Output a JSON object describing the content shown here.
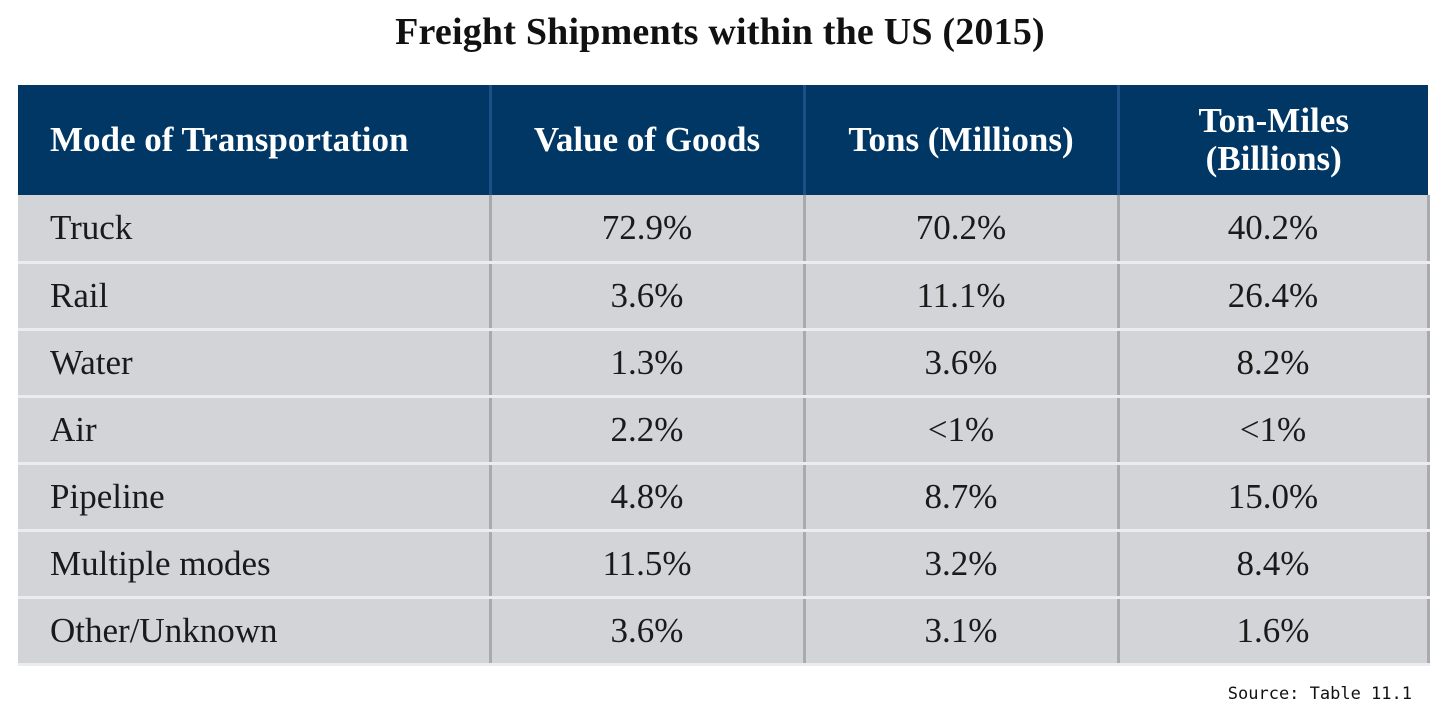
{
  "title": "Freight Shipments within the US (2015)",
  "source": "Source: Table 11.1",
  "colors": {
    "header_bg": "#003764",
    "header_text": "#ffffff",
    "row_bg": "#d3d4d8",
    "row_divider": "#ececee"
  },
  "chart_data": {
    "type": "table",
    "title": "Freight Shipments within the US (2015)",
    "columns": [
      "Mode of Transportation",
      "Value of Goods",
      "Tons (Millions)",
      "Ton-Miles (Billions)"
    ],
    "column_lines": [
      [
        "Mode of Transportation"
      ],
      [
        "Value of Goods"
      ],
      [
        "Tons (Millions)"
      ],
      [
        "Ton-Miles",
        "(Billions)"
      ]
    ],
    "rows": [
      {
        "mode": "Truck",
        "value": "72.9%",
        "tons": "70.2%",
        "ton_miles": "40.2%"
      },
      {
        "mode": "Rail",
        "value": "3.6%",
        "tons": "11.1%",
        "ton_miles": "26.4%"
      },
      {
        "mode": "Water",
        "value": "1.3%",
        "tons": "3.6%",
        "ton_miles": "8.2%"
      },
      {
        "mode": "Air",
        "value": "2.2%",
        "tons": "<1%",
        "ton_miles": "<1%"
      },
      {
        "mode": "Pipeline",
        "value": "4.8%",
        "tons": "8.7%",
        "ton_miles": "15.0%"
      },
      {
        "mode": "Multiple modes",
        "value": "11.5%",
        "tons": "3.2%",
        "ton_miles": "8.4%"
      },
      {
        "mode": "Other/Unknown",
        "value": "3.6%",
        "tons": "3.1%",
        "ton_miles": "1.6%"
      }
    ],
    "source": "Source: Table 11.1"
  }
}
